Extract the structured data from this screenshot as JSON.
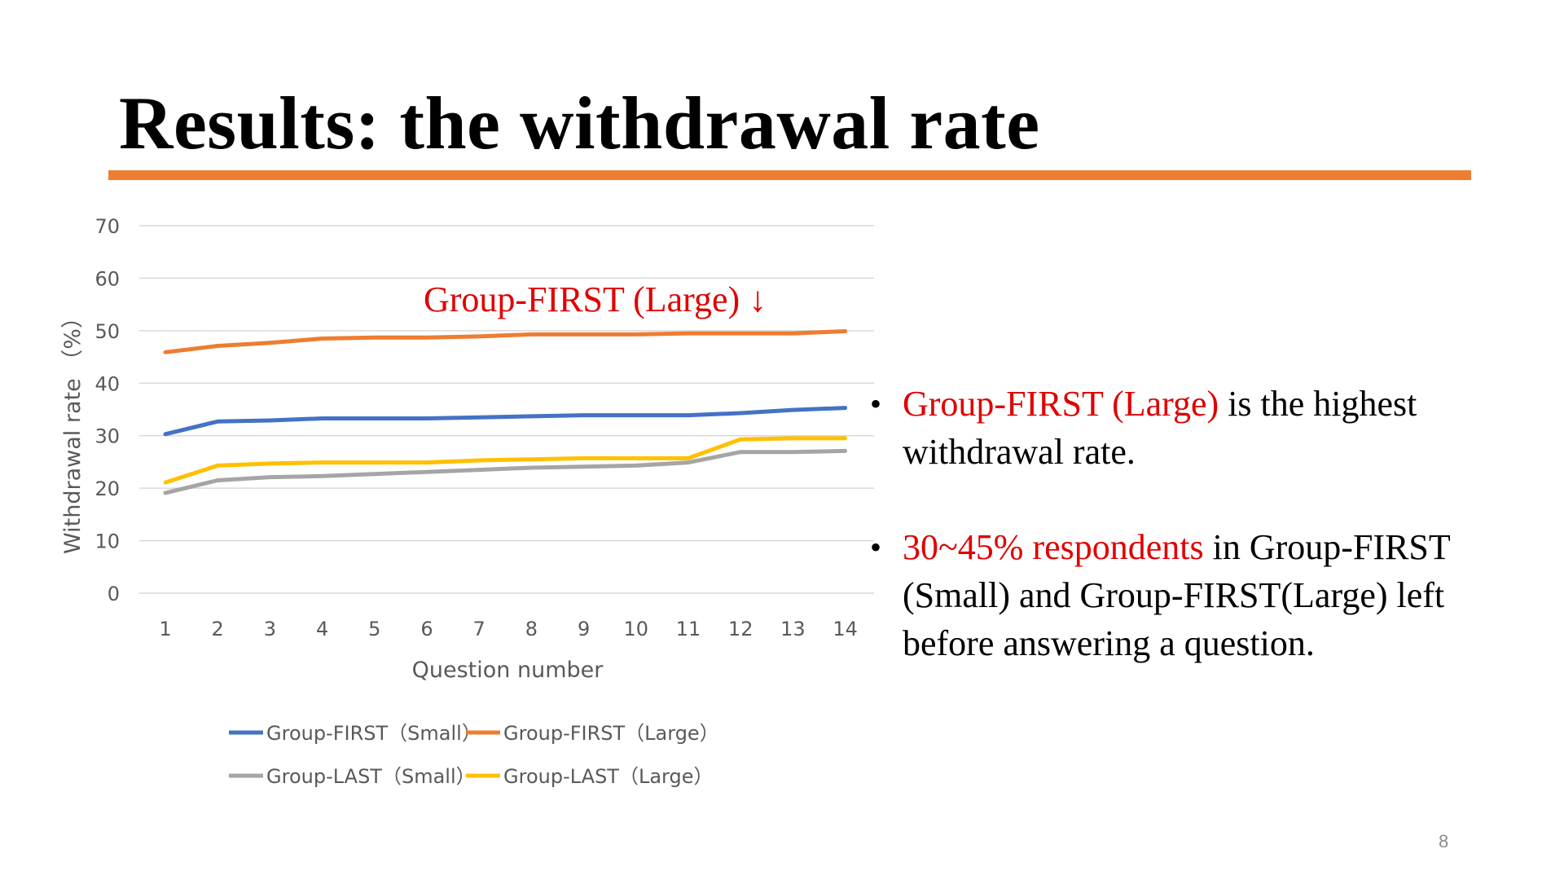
{
  "slide": {
    "title": "Results: the withdrawal rate",
    "page_number": "8",
    "accent_color": "#ED7D31"
  },
  "annotation": {
    "text": "Group-FIRST (Large) ↓",
    "color": "#E00000"
  },
  "bullets": [
    {
      "highlight": "Group-FIRST (Large)",
      "rest": " is the highest withdrawal rate."
    },
    {
      "highlight": "30~45% respondents",
      "rest": " in Group-FIRST (Small) and Group-FIRST(Large) left before answering a question."
    }
  ],
  "chart_data": {
    "type": "line",
    "title": "",
    "xlabel": "Question number",
    "ylabel": "Withdrawal rate （%）",
    "x": [
      1,
      2,
      3,
      4,
      5,
      6,
      7,
      8,
      9,
      10,
      11,
      12,
      13,
      14
    ],
    "ylim": [
      0,
      70
    ],
    "yticks": [
      0,
      10,
      20,
      30,
      40,
      50,
      60,
      70
    ],
    "grid": true,
    "legend_position": "bottom",
    "series": [
      {
        "name": "Group-FIRST（Small）",
        "color": "#4472C4",
        "values": [
          30.3,
          32.7,
          32.9,
          33.3,
          33.3,
          33.3,
          33.5,
          33.7,
          33.9,
          33.9,
          33.9,
          34.3,
          34.9,
          35.3
        ]
      },
      {
        "name": "Group-FIRST（Large）",
        "color": "#ED7D31",
        "values": [
          45.9,
          47.1,
          47.7,
          48.5,
          48.7,
          48.7,
          48.9,
          49.3,
          49.3,
          49.3,
          49.5,
          49.5,
          49.5,
          49.9
        ]
      },
      {
        "name": "Group-LAST（Small）",
        "color": "#A5A5A5",
        "values": [
          19.1,
          21.5,
          22.1,
          22.3,
          22.7,
          23.1,
          23.5,
          23.9,
          24.1,
          24.3,
          24.9,
          26.9,
          26.9,
          27.1
        ]
      },
      {
        "name": "Group-LAST（Large）",
        "color": "#FFC000",
        "values": [
          21.1,
          24.3,
          24.7,
          24.9,
          24.9,
          24.9,
          25.3,
          25.5,
          25.7,
          25.7,
          25.7,
          29.3,
          29.5,
          29.5
        ]
      }
    ]
  }
}
